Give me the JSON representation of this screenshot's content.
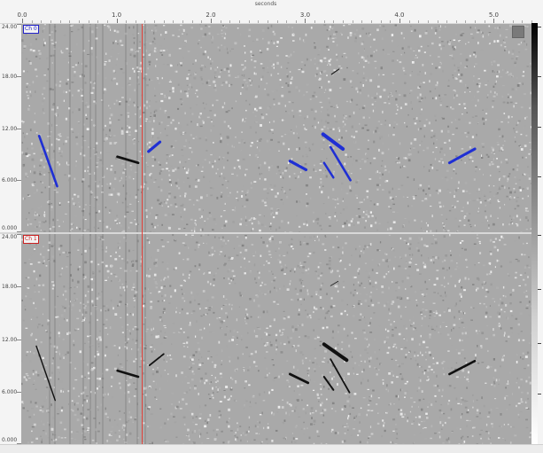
{
  "ruler": {
    "title": "seconds",
    "ticks": [
      "0.0",
      "1.0",
      "2.0",
      "3.0",
      "4.0",
      "5.0"
    ],
    "tick_seconds": [
      0,
      1,
      2,
      3,
      4,
      5
    ]
  },
  "view": {
    "t_min": -0.01,
    "t_max": 5.4,
    "y_min": 0,
    "y_max": 24
  },
  "cursor": {
    "time_seconds": 1.27,
    "color": "#e0413a"
  },
  "channels": [
    {
      "label": "Ch 0",
      "y_ticks": [
        "24.00",
        "18.00",
        "12.00",
        "6.000",
        "0.000"
      ],
      "tick_values": [
        24,
        18,
        12,
        6,
        0
      ],
      "annotation_color": "#1f2fd4",
      "blobs": [
        {
          "t1": 0.18,
          "y1": 11.1,
          "t2": 0.37,
          "y2": 5.3,
          "w": 2.6,
          "blue": true
        },
        {
          "t1": 1.01,
          "y1": 8.7,
          "t2": 1.23,
          "y2": 8.0,
          "w": 2.8,
          "blue": false
        },
        {
          "t1": 1.34,
          "y1": 9.3,
          "t2": 1.46,
          "y2": 10.4,
          "w": 3.2,
          "blue": true
        },
        {
          "t1": 2.84,
          "y1": 8.2,
          "t2": 3.01,
          "y2": 7.2,
          "w": 3.2,
          "blue": true
        },
        {
          "t1": 3.19,
          "y1": 11.3,
          "t2": 3.4,
          "y2": 9.6,
          "w": 4.0,
          "blue": true
        },
        {
          "t1": 3.27,
          "y1": 9.8,
          "t2": 3.48,
          "y2": 6.0,
          "w": 2.6,
          "blue": true
        },
        {
          "t1": 3.2,
          "y1": 8.0,
          "t2": 3.3,
          "y2": 6.3,
          "w": 2.4,
          "blue": true
        },
        {
          "t1": 4.53,
          "y1": 8.0,
          "t2": 4.8,
          "y2": 9.6,
          "w": 3.0,
          "blue": true
        },
        {
          "t1": 3.28,
          "y1": 18.2,
          "t2": 3.36,
          "y2": 18.8,
          "w": 1.0,
          "blue": false
        }
      ]
    },
    {
      "label": "Ch 1",
      "y_ticks": [
        "24.00",
        "18.00",
        "12.00",
        "6.000",
        "0.000"
      ],
      "tick_values": [
        24,
        18,
        12,
        6,
        0
      ],
      "annotation_color": "#111111",
      "blobs": [
        {
          "t1": 0.15,
          "y1": 11.2,
          "t2": 0.35,
          "y2": 5.0,
          "w": 1.4,
          "blue": false
        },
        {
          "t1": 1.01,
          "y1": 8.4,
          "t2": 1.23,
          "y2": 7.7,
          "w": 2.6,
          "blue": false
        },
        {
          "t1": 1.35,
          "y1": 9.0,
          "t2": 1.5,
          "y2": 10.3,
          "w": 1.8,
          "blue": false
        },
        {
          "t1": 2.84,
          "y1": 8.0,
          "t2": 3.03,
          "y2": 7.0,
          "w": 2.8,
          "blue": false
        },
        {
          "t1": 3.2,
          "y1": 11.4,
          "t2": 3.44,
          "y2": 9.6,
          "w": 4.0,
          "blue": false
        },
        {
          "t1": 3.27,
          "y1": 9.7,
          "t2": 3.47,
          "y2": 5.9,
          "w": 1.8,
          "blue": false
        },
        {
          "t1": 3.2,
          "y1": 7.7,
          "t2": 3.3,
          "y2": 6.2,
          "w": 2.0,
          "blue": false
        },
        {
          "t1": 4.53,
          "y1": 8.0,
          "t2": 4.8,
          "y2": 9.5,
          "w": 2.6,
          "blue": false
        },
        {
          "t1": 3.27,
          "y1": 18.1,
          "t2": 3.35,
          "y2": 18.6,
          "w": 0.8,
          "blue": false
        }
      ]
    }
  ]
}
